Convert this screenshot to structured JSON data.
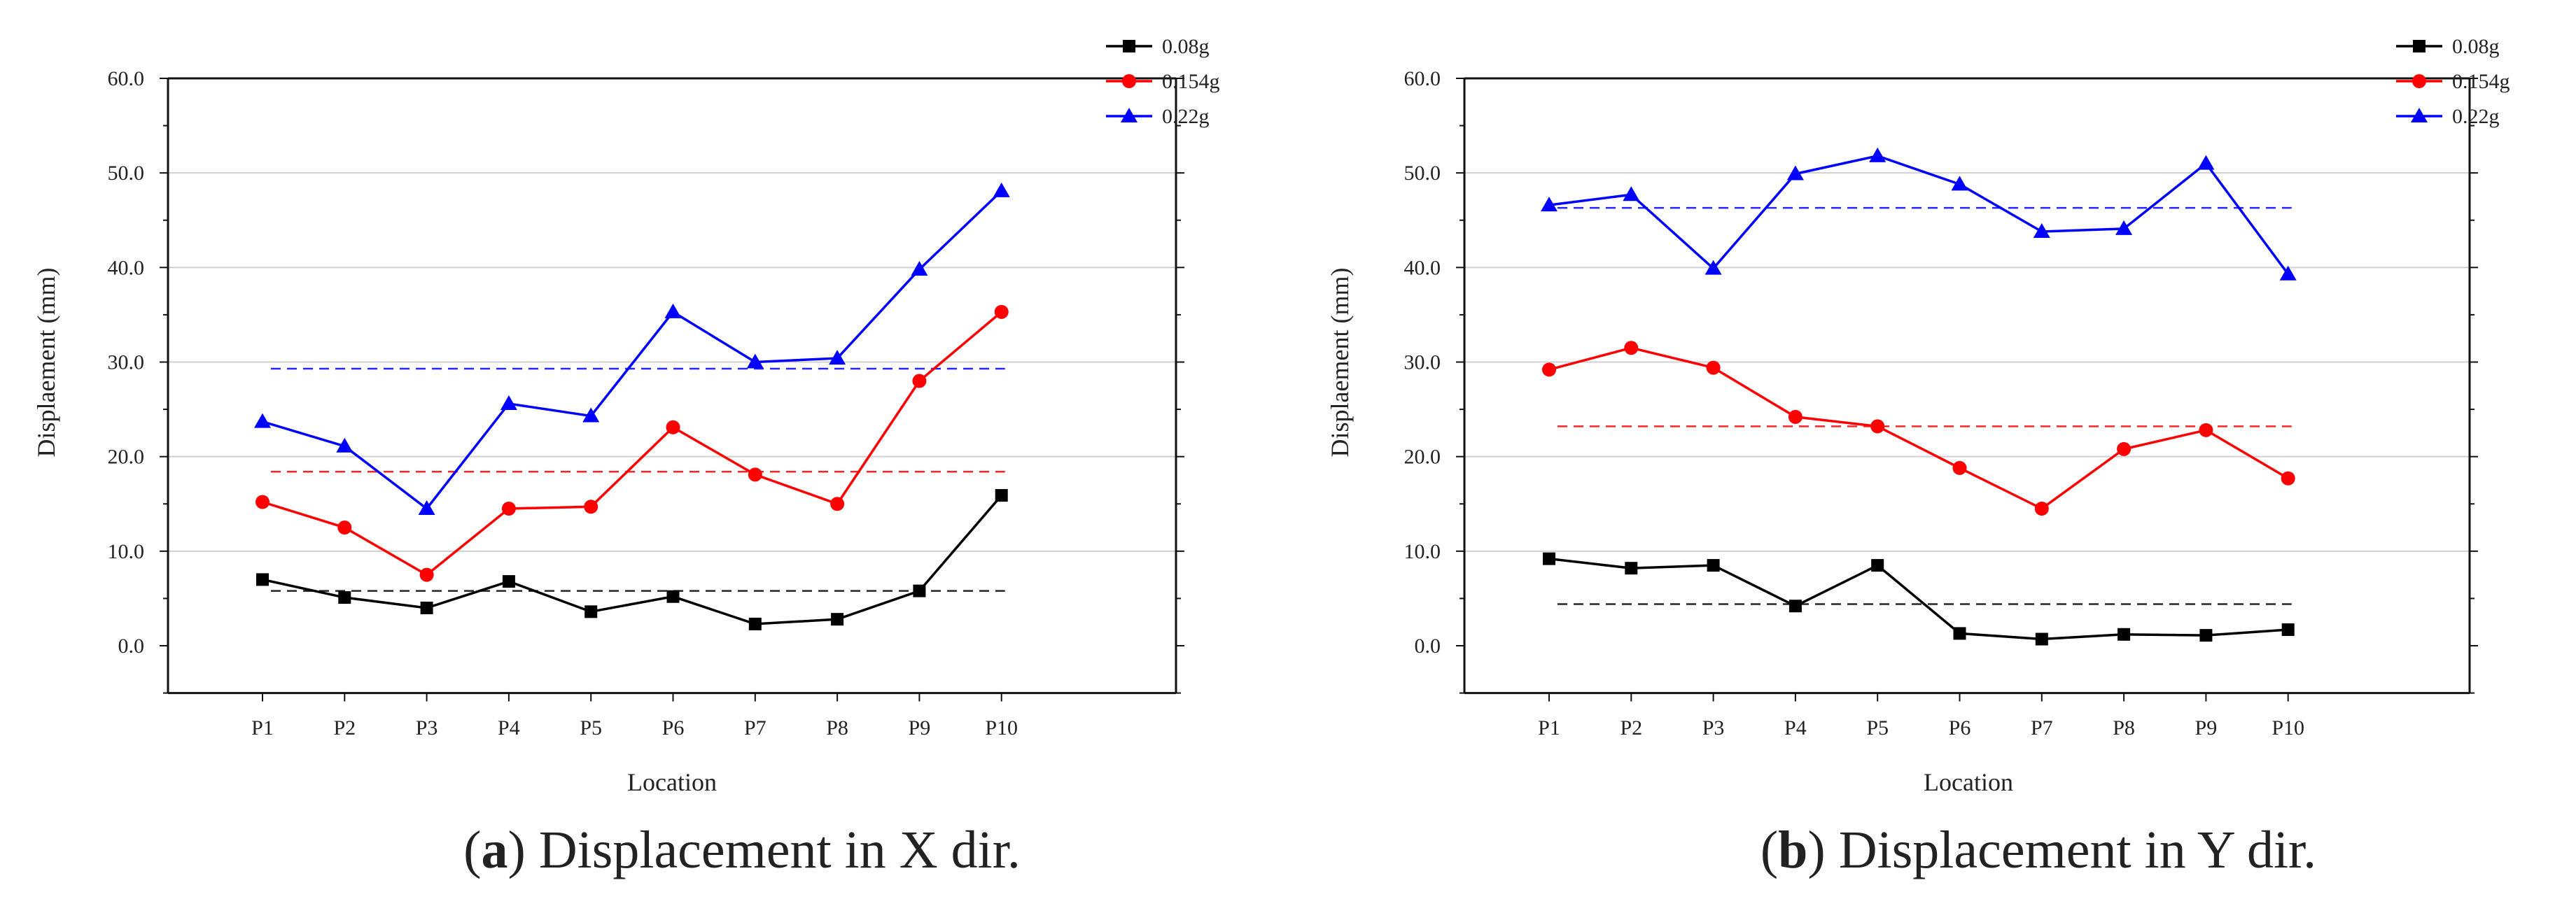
{
  "chart_data": [
    {
      "type": "line",
      "caption_prefix": "(",
      "caption_letter": "a",
      "caption_text": ") Displacement in X dir.",
      "xlabel": "Location",
      "ylabel": "Displaement (mm)",
      "categories": [
        "P1",
        "P2",
        "P3",
        "P4",
        "P5",
        "P6",
        "P7",
        "P8",
        "P9",
        "P10"
      ],
      "yticks": [
        "0.0",
        "10.0",
        "20.0",
        "30.0",
        "40.0",
        "50.0",
        "60.0"
      ],
      "ylim": [
        -5,
        60
      ],
      "grid": true,
      "legend_position": "top-right",
      "series": [
        {
          "name": "0.08g",
          "color": "#000000",
          "marker": "square",
          "values": [
            7.0,
            5.1,
            4.0,
            6.8,
            3.6,
            5.2,
            2.3,
            2.8,
            5.8,
            15.9
          ],
          "mean": 5.8
        },
        {
          "name": "0.154g",
          "color": "#ff0000",
          "marker": "circle",
          "values": [
            15.2,
            12.5,
            7.5,
            14.5,
            14.7,
            23.1,
            18.1,
            15.0,
            28.0,
            35.3
          ],
          "mean": 18.4
        },
        {
          "name": "0.22g",
          "color": "#0000ff",
          "marker": "triangle",
          "values": [
            23.7,
            21.1,
            14.5,
            25.6,
            24.3,
            35.3,
            30.0,
            30.4,
            39.8,
            48.1
          ],
          "mean": 29.3
        }
      ]
    },
    {
      "type": "line",
      "caption_prefix": "(",
      "caption_letter": "b",
      "caption_text": ") Displacement in Y dir.",
      "xlabel": "Location",
      "ylabel": "Displaement (mm)",
      "categories": [
        "P1",
        "P2",
        "P3",
        "P4",
        "P5",
        "P6",
        "P7",
        "P8",
        "P9",
        "P10"
      ],
      "yticks": [
        "0.0",
        "10.0",
        "20.0",
        "30.0",
        "40.0",
        "50.0",
        "60.0"
      ],
      "ylim": [
        -5,
        60
      ],
      "grid": true,
      "legend_position": "top-right",
      "series": [
        {
          "name": "0.08g",
          "color": "#000000",
          "marker": "square",
          "values": [
            9.2,
            8.2,
            8.5,
            4.2,
            8.5,
            1.3,
            0.7,
            1.2,
            1.1,
            1.7
          ],
          "mean": 4.4
        },
        {
          "name": "0.154g",
          "color": "#ff0000",
          "marker": "circle",
          "values": [
            29.2,
            31.5,
            29.4,
            24.2,
            23.2,
            18.8,
            14.5,
            20.8,
            22.8,
            17.7
          ],
          "mean": 23.2
        },
        {
          "name": "0.22g",
          "color": "#0000ff",
          "marker": "triangle",
          "values": [
            46.6,
            47.7,
            39.9,
            49.9,
            51.8,
            48.8,
            43.8,
            44.1,
            51.0,
            39.3
          ],
          "mean": 46.3
        }
      ]
    }
  ]
}
